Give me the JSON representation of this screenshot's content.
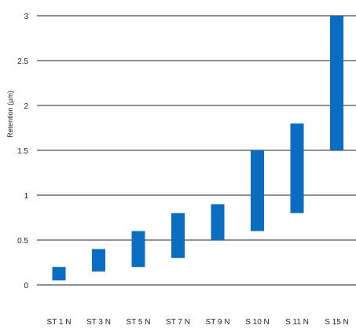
{
  "chart_data": {
    "type": "bar",
    "subtype": "floating-range",
    "title": "",
    "xlabel": "",
    "ylabel": "Retention (µm)",
    "ylim": [
      0,
      3
    ],
    "yticks": [
      "0",
      "0.5",
      "1",
      "1.5",
      "2",
      "2.5",
      "3"
    ],
    "grid": true,
    "legend": "none",
    "categories": [
      "ST 1 N",
      "ST 3 N",
      "ST 5 N",
      "ST 7 N",
      "ST 9 N",
      "S 10 N",
      "S 11 N",
      "S 15 N"
    ],
    "series": [
      {
        "ranges": [
          [
            0.05,
            0.2
          ],
          [
            0.15,
            0.4
          ],
          [
            0.2,
            0.6
          ],
          [
            0.3,
            0.8
          ],
          [
            0.5,
            0.9
          ],
          [
            0.6,
            1.5
          ],
          [
            0.8,
            1.8
          ],
          [
            1.5,
            3.0
          ]
        ]
      }
    ],
    "colors": {
      "bar": "#0a6dc2",
      "grid": "#222222",
      "text": "#222222"
    }
  }
}
